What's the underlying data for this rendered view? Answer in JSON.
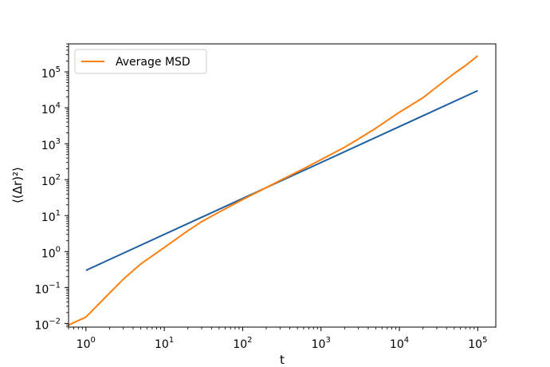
{
  "chart_data": {
    "type": "line",
    "title": "",
    "xlabel": "t",
    "ylabel": "⟨(Δr)²⟩",
    "xscale": "log",
    "yscale": "log",
    "xlim": [
      0.6,
      170000
    ],
    "ylim": [
      0.0079,
      600000
    ],
    "grid": false,
    "legend_placement": "top-left",
    "x_ticks": [
      {
        "base": "10",
        "exp": "0",
        "value": 1
      },
      {
        "base": "10",
        "exp": "1",
        "value": 10
      },
      {
        "base": "10",
        "exp": "2",
        "value": 100
      },
      {
        "base": "10",
        "exp": "3",
        "value": 1000
      },
      {
        "base": "10",
        "exp": "4",
        "value": 10000
      },
      {
        "base": "10",
        "exp": "5",
        "value": 100000
      }
    ],
    "y_ticks": [
      {
        "base": "10",
        "exp": "−2",
        "value": 0.01
      },
      {
        "base": "10",
        "exp": "−1",
        "value": 0.1
      },
      {
        "base": "10",
        "exp": "0",
        "value": 1
      },
      {
        "base": "10",
        "exp": "1",
        "value": 10
      },
      {
        "base": "10",
        "exp": "2",
        "value": 100
      },
      {
        "base": "10",
        "exp": "3",
        "value": 1000
      },
      {
        "base": "10",
        "exp": "4",
        "value": 10000
      },
      {
        "base": "10",
        "exp": "5",
        "value": 100000
      }
    ],
    "series": [
      {
        "color": "#1f5fa0",
        "x": [
          1,
          100000
        ],
        "y": [
          0.3,
          30000
        ]
      },
      {
        "name": "Average MSD",
        "color": "#ff7f0e",
        "x": [
          0.6,
          1,
          2,
          3,
          5,
          10,
          20,
          30,
          50,
          100,
          200,
          300,
          500,
          1000,
          2000,
          3000,
          5000,
          10000,
          20000,
          30000,
          50000,
          70000,
          100000
        ],
        "y": [
          0.009,
          0.015,
          0.07,
          0.17,
          0.45,
          1.3,
          3.8,
          6.8,
          12.5,
          28,
          60,
          95,
          165,
          360,
          800,
          1350,
          2700,
          7500,
          19000,
          38000,
          90000,
          150000,
          280000
        ]
      }
    ]
  }
}
